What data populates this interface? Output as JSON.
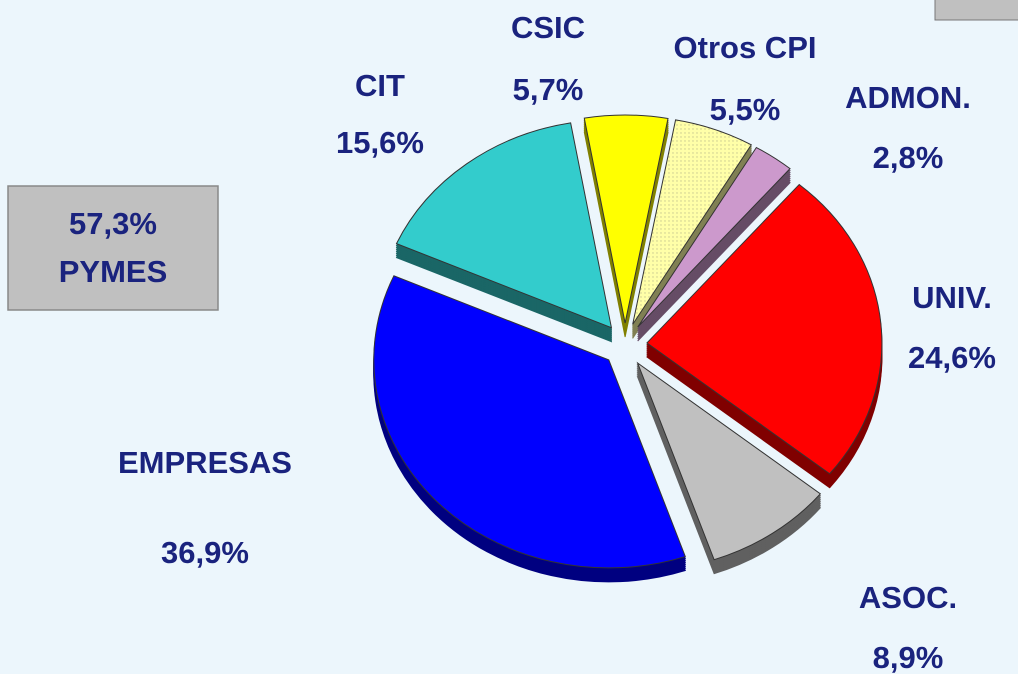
{
  "chart_data": {
    "type": "pie",
    "categories": [
      "CSIC",
      "Otros CPI",
      "ADMON.",
      "UNIV.",
      "ASOC.",
      "EMPRESAS",
      "CIT"
    ],
    "values": [
      5.7,
      5.5,
      2.8,
      24.6,
      8.9,
      36.9,
      15.6
    ],
    "value_labels": [
      "5,7%",
      "5,5%",
      "2,8%",
      "24,6%",
      "8,9%",
      "36,9%",
      "15,6%"
    ],
    "colors": [
      "#ffff00",
      "#ffffa8",
      "#cc99cc",
      "#ff0000",
      "#c0c0c0",
      "#0000ff",
      "#33cccc"
    ],
    "annotation": [
      "57,3%",
      "PYMES"
    ]
  }
}
